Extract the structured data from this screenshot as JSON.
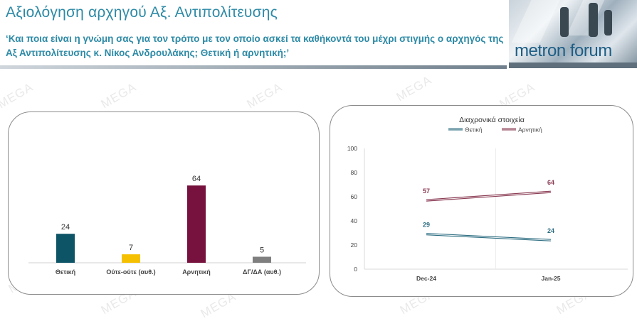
{
  "header": {
    "title": "Αξιολόγηση αρχηγού Αξ. Αντιπολίτευσης",
    "subtitle": "‘Και ποια είναι η γνώμη σας για τον τρόπο με τον οποίο ασκεί τα καθήκοντά του μέχρι στιγμής ο αρχηγός της Αξ Αντιπολίτευσης κ. Νίκος Ανδρουλάκης; Θετική ή αρνητική;’"
  },
  "logo": {
    "text": "metron forum"
  },
  "watermark": {
    "text": "MEGA"
  },
  "colors": {
    "brand": "#2d8aa6",
    "positive": "#0d5467",
    "neutral": "#f5c000",
    "negative": "#76123d",
    "dk": "#7f7f7f"
  },
  "chart_data": [
    {
      "type": "bar",
      "categories": [
        "Θετική",
        "Ούτε-ούτε (αυθ.)",
        "Αρνητική",
        "ΔΓ/ΔΑ (αυθ.)"
      ],
      "values": [
        24,
        7,
        64,
        5
      ],
      "colors": [
        "#0d5467",
        "#f5c000",
        "#76123d",
        "#7f7f7f"
      ]
    },
    {
      "type": "line",
      "title": "Διαχρονικά στοιχεία",
      "x": [
        "Dec-24",
        "Jan-25"
      ],
      "series": [
        {
          "name": "Θετική",
          "values": [
            29,
            24
          ],
          "color": "#2e6e82"
        },
        {
          "name": "Αρνητική",
          "values": [
            57,
            64
          ],
          "color": "#8b3d55"
        }
      ],
      "ylim": [
        0,
        100
      ],
      "yticks": [
        0,
        20,
        40,
        60,
        80,
        100
      ],
      "legend": "top",
      "grid": false
    }
  ]
}
